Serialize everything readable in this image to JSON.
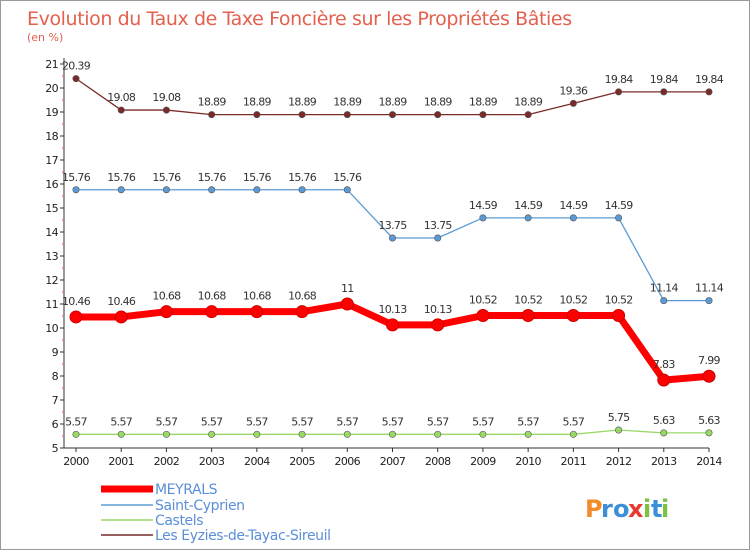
{
  "chart_data": {
    "type": "line",
    "title": "Evolution du Taux de Taxe Foncière sur les Propriétés Bâties",
    "subtitle": "(en %)",
    "x": [
      "2000",
      "2001",
      "2002",
      "2003",
      "2004",
      "2005",
      "2006",
      "2007",
      "2008",
      "2009",
      "2010",
      "2011",
      "2012",
      "2013",
      "2014"
    ],
    "ylim": [
      5,
      21
    ],
    "yticks": [
      "5",
      "6",
      "7",
      "8",
      "9",
      "10",
      "11",
      "12",
      "13",
      "14",
      "15",
      "16",
      "17",
      "18",
      "19",
      "20",
      "21"
    ],
    "grid": false,
    "legend_position": "bottom-left",
    "series": [
      {
        "name": "MEYRALS",
        "color": "#ff0000",
        "values": [
          10.46,
          10.46,
          10.68,
          10.68,
          10.68,
          10.68,
          11,
          10.13,
          10.13,
          10.52,
          10.52,
          10.52,
          10.52,
          7.83,
          7.99
        ],
        "labels": [
          "10.46",
          "10.46",
          "10.68",
          "10.68",
          "10.68",
          "10.68",
          "11",
          "10.13",
          "10.13",
          "10.52",
          "10.52",
          "10.52",
          "10.52",
          "7.83",
          "7.99"
        ]
      },
      {
        "name": "Saint-Cyprien",
        "color": "#5b9bd5",
        "values": [
          15.76,
          15.76,
          15.76,
          15.76,
          15.76,
          15.76,
          15.76,
          13.75,
          13.75,
          14.59,
          14.59,
          14.59,
          14.59,
          11.14,
          11.14
        ],
        "labels": [
          "15.76",
          "15.76",
          "15.76",
          "15.76",
          "15.76",
          "15.76",
          "15.76",
          "13.75",
          "13.75",
          "14.59",
          "14.59",
          "14.59",
          "14.59",
          "11.14",
          "11.14"
        ]
      },
      {
        "name": "Castels",
        "color": "#99d966",
        "values": [
          5.57,
          5.57,
          5.57,
          5.57,
          5.57,
          5.57,
          5.57,
          5.57,
          5.57,
          5.57,
          5.57,
          5.57,
          5.75,
          5.63,
          5.63
        ],
        "labels": [
          "5.57",
          "5.57",
          "5.57",
          "5.57",
          "5.57",
          "5.57",
          "5.57",
          "5.57",
          "5.57",
          "5.57",
          "5.57",
          "5.57",
          "5.75",
          "5.63",
          "5.63"
        ]
      },
      {
        "name": "Les Eyzies-de-Tayac-Sireuil",
        "color": "#7b2a2a",
        "values": [
          20.39,
          19.08,
          19.08,
          18.89,
          18.89,
          18.89,
          18.89,
          18.89,
          18.89,
          18.89,
          18.89,
          19.36,
          19.84,
          19.84,
          19.84
        ],
        "labels": [
          "20.39",
          "19.08",
          "19.08",
          "18.89",
          "18.89",
          "18.89",
          "18.89",
          "18.89",
          "18.89",
          "18.89",
          "18.89",
          "19.36",
          "19.84",
          "19.84",
          "19.84"
        ]
      }
    ]
  },
  "brand": {
    "text": "Proxiti",
    "letters": [
      "P",
      "r",
      "o",
      "x",
      "i",
      "t",
      "i"
    ],
    "colors": [
      "#f28c28",
      "#3b8fd6",
      "#3b8fd6",
      "#e63b2e",
      "#7cc242",
      "#3b8fd6",
      "#7cc242"
    ]
  }
}
